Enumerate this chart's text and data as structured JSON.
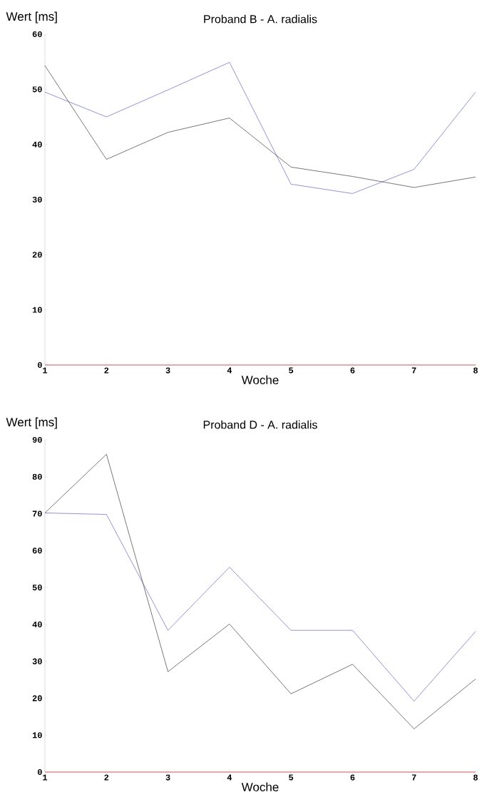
{
  "chart_data": [
    {
      "type": "line",
      "title": "Proband B - A. radialis",
      "xlabel": "Woche",
      "ylabel": "Wert [ms]",
      "x": [
        1,
        2,
        3,
        4,
        5,
        6,
        7,
        8
      ],
      "series": [
        {
          "color": "#7777cc",
          "values": [
            49.5,
            45.0,
            49.9,
            54.9,
            32.8,
            31.1,
            35.5,
            49.5
          ]
        },
        {
          "color": "#555555",
          "values": [
            54.3,
            37.3,
            42.2,
            44.8,
            35.9,
            34.2,
            32.2,
            34.1
          ]
        }
      ],
      "xlim": [
        1,
        8
      ],
      "xticks": [
        1,
        2,
        3,
        4,
        5,
        6,
        7,
        8
      ],
      "ylim": [
        0,
        60
      ],
      "yticks": [
        0,
        10,
        20,
        30,
        40,
        50,
        60
      ],
      "ref_lines": [
        {
          "axis": "y",
          "value": 0,
          "color": "#e06666"
        }
      ]
    },
    {
      "type": "line",
      "title": "Proband D - A. radialis",
      "xlabel": "Woche",
      "ylabel": "Wert [ms]",
      "x": [
        1,
        2,
        3,
        4,
        5,
        6,
        7,
        8
      ],
      "series": [
        {
          "color": "#7777cc",
          "values": [
            70.2,
            69.8,
            38.4,
            55.5,
            38.4,
            38.4,
            19.2,
            38.1
          ]
        },
        {
          "color": "#555555",
          "values": [
            70.2,
            86.1,
            27.2,
            40.1,
            21.2,
            29.2,
            11.7,
            25.2
          ]
        }
      ],
      "xlim": [
        1,
        8
      ],
      "xticks": [
        1,
        2,
        3,
        4,
        5,
        6,
        7,
        8
      ],
      "ylim": [
        0,
        90
      ],
      "yticks": [
        0,
        10,
        20,
        30,
        40,
        50,
        60,
        70,
        80,
        90
      ],
      "ref_lines": [
        {
          "axis": "y",
          "value": 0,
          "color": "#e06666"
        }
      ]
    }
  ]
}
